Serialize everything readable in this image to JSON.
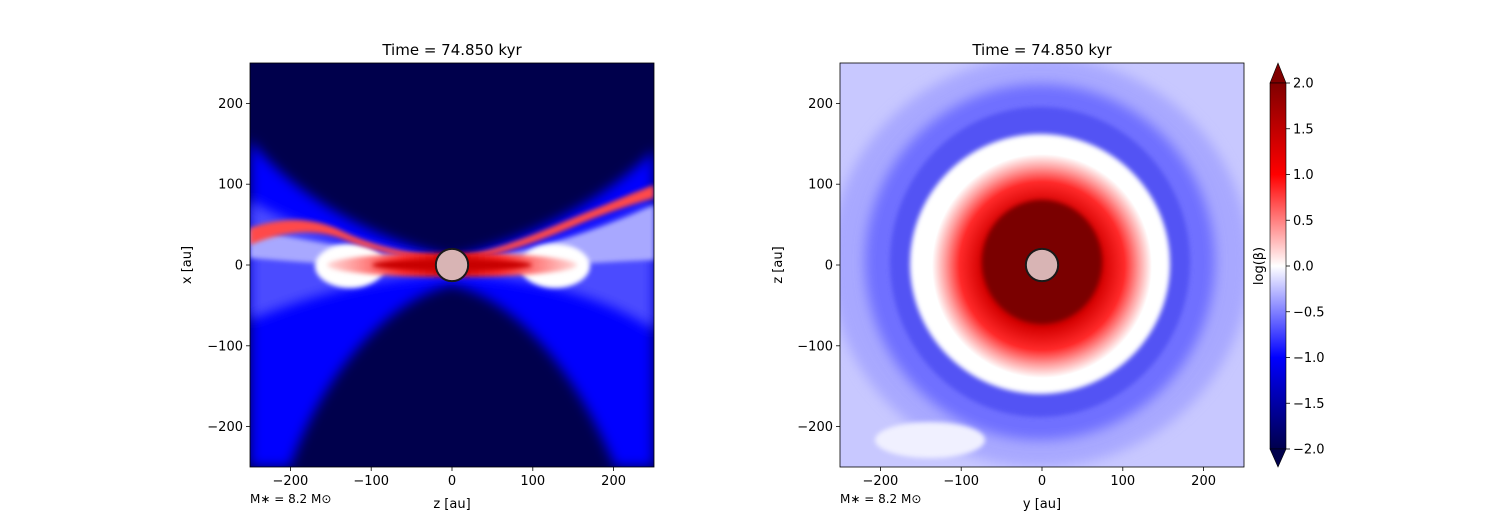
{
  "chart_data": [
    {
      "type": "heatmap",
      "title": "Time = 74.850 kyr",
      "xlabel": "z [au]",
      "ylabel": "x [au]",
      "xlim": [
        -250,
        250
      ],
      "ylim": [
        -250,
        250
      ],
      "xticks": [
        -200,
        -100,
        0,
        100,
        200
      ],
      "yticks": [
        -200,
        -100,
        0,
        100,
        200
      ],
      "xtick_labels": [
        "−200",
        "−100",
        "0",
        "100",
        "200"
      ],
      "ytick_labels": [
        "−200",
        "−100",
        "0",
        "100",
        "200"
      ],
      "annotation": "M∗ = 8.2 M⊙",
      "star": {
        "x": 0,
        "y": 0,
        "r": 20
      }
    },
    {
      "type": "heatmap",
      "title": "Time = 74.850 kyr",
      "xlabel": "y [au]",
      "ylabel": "z [au]",
      "xlim": [
        -250,
        250
      ],
      "ylim": [
        -250,
        250
      ],
      "xticks": [
        -200,
        -100,
        0,
        100,
        200
      ],
      "yticks": [
        -200,
        -100,
        0,
        100,
        200
      ],
      "xtick_labels": [
        "−200",
        "−100",
        "0",
        "100",
        "200"
      ],
      "ytick_labels": [
        "−200",
        "−100",
        "0",
        "100",
        "200"
      ],
      "annotation": "M∗ = 8.2 M⊙",
      "star": {
        "x": 0,
        "y": 0,
        "r": 20
      }
    }
  ],
  "colorbar": {
    "label": "log(β)",
    "range": [
      -2.0,
      2.0
    ],
    "ticks": [
      2.0,
      1.5,
      1.0,
      0.5,
      0.0,
      -0.5,
      -1.0,
      -1.5,
      -2.0
    ],
    "tick_labels": [
      "2.0",
      "1.5",
      "1.0",
      "0.5",
      "0.0",
      "−0.5",
      "−1.0",
      "−1.5",
      "−2.0"
    ],
    "colormap": "seismic",
    "extend": "both"
  },
  "colors": {
    "dark_red": "#800000",
    "red": "#ff0000",
    "white": "#ffffff",
    "blue": "#0000ff",
    "dark_blue": "#00004c",
    "star_fill": "#d8b4b4"
  }
}
